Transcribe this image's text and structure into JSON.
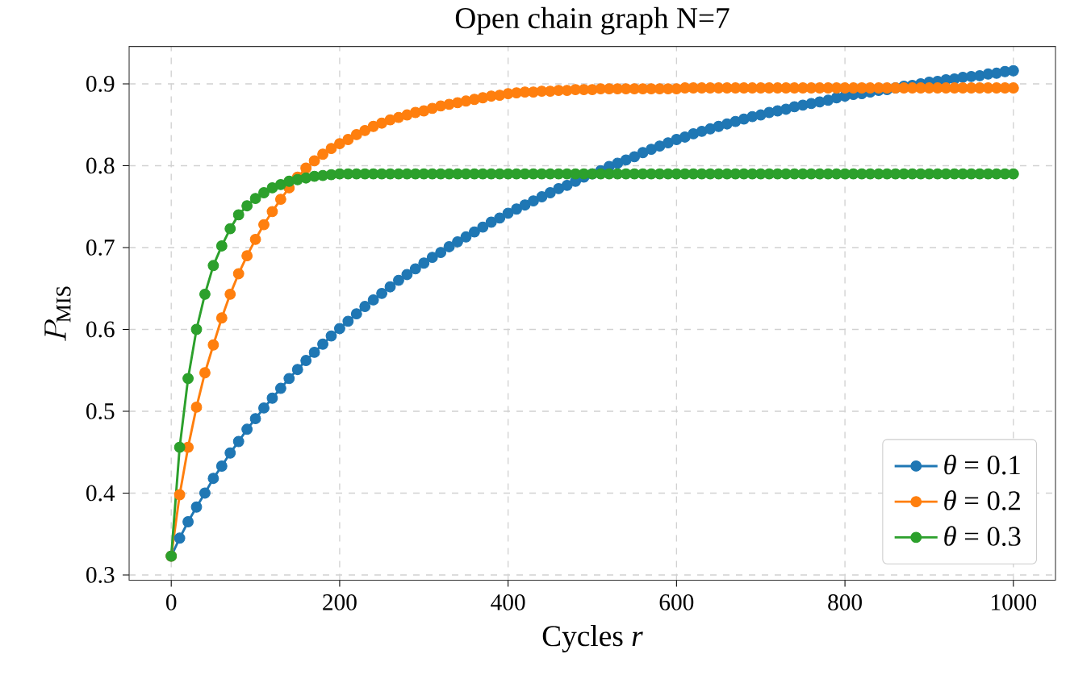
{
  "chart_data": {
    "type": "line",
    "title": "Open chain graph N=7",
    "xlabel": "Cycles *r*",
    "ylabel": "P_{\\mathrm{MIS}}",
    "x": [
      0,
      10,
      20,
      30,
      40,
      50,
      60,
      70,
      80,
      90,
      100,
      110,
      120,
      130,
      140,
      150,
      160,
      170,
      180,
      190,
      200,
      210,
      220,
      230,
      240,
      250,
      260,
      270,
      280,
      290,
      300,
      310,
      320,
      330,
      340,
      350,
      360,
      370,
      380,
      390,
      400,
      410,
      420,
      430,
      440,
      450,
      460,
      470,
      480,
      490,
      500,
      510,
      520,
      530,
      540,
      550,
      560,
      570,
      580,
      590,
      600,
      610,
      620,
      630,
      640,
      650,
      660,
      670,
      680,
      690,
      700,
      710,
      720,
      730,
      740,
      750,
      760,
      770,
      780,
      790,
      800,
      810,
      820,
      830,
      840,
      850,
      860,
      870,
      880,
      890,
      900,
      910,
      920,
      930,
      940,
      950,
      960,
      970,
      980,
      990,
      1000
    ],
    "series": [
      {
        "name": "*θ* = 0.1",
        "color": "#1f77b4",
        "values": [
          0.323,
          0.345,
          0.365,
          0.383,
          0.4,
          0.418,
          0.433,
          0.449,
          0.463,
          0.478,
          0.491,
          0.504,
          0.516,
          0.528,
          0.54,
          0.551,
          0.562,
          0.572,
          0.582,
          0.592,
          0.601,
          0.61,
          0.619,
          0.628,
          0.636,
          0.644,
          0.652,
          0.66,
          0.667,
          0.674,
          0.681,
          0.688,
          0.694,
          0.701,
          0.707,
          0.713,
          0.719,
          0.725,
          0.731,
          0.736,
          0.742,
          0.747,
          0.752,
          0.757,
          0.762,
          0.767,
          0.772,
          0.776,
          0.781,
          0.786,
          0.79,
          0.794,
          0.799,
          0.803,
          0.807,
          0.811,
          0.816,
          0.82,
          0.824,
          0.828,
          0.832,
          0.835,
          0.839,
          0.842,
          0.845,
          0.848,
          0.851,
          0.854,
          0.857,
          0.86,
          0.862,
          0.865,
          0.867,
          0.869,
          0.872,
          0.874,
          0.876,
          0.878,
          0.88,
          0.883,
          0.885,
          0.887,
          0.888,
          0.89,
          0.892,
          0.893,
          0.895,
          0.897,
          0.898,
          0.9,
          0.902,
          0.903,
          0.905,
          0.906,
          0.908,
          0.909,
          0.91,
          0.912,
          0.913,
          0.915,
          0.916
        ]
      },
      {
        "name": "*θ* = 0.2",
        "color": "#ff7f0e",
        "values": [
          0.323,
          0.398,
          0.456,
          0.505,
          0.547,
          0.581,
          0.614,
          0.643,
          0.668,
          0.69,
          0.71,
          0.728,
          0.744,
          0.759,
          0.773,
          0.786,
          0.797,
          0.806,
          0.814,
          0.821,
          0.827,
          0.832,
          0.838,
          0.843,
          0.848,
          0.852,
          0.856,
          0.859,
          0.862,
          0.865,
          0.867,
          0.87,
          0.873,
          0.875,
          0.877,
          0.879,
          0.881,
          0.883,
          0.885,
          0.886,
          0.888,
          0.889,
          0.89,
          0.89,
          0.891,
          0.891,
          0.892,
          0.892,
          0.893,
          0.893,
          0.893,
          0.894,
          0.894,
          0.894,
          0.894,
          0.894,
          0.894,
          0.894,
          0.894,
          0.894,
          0.894,
          0.895,
          0.895,
          0.895,
          0.895,
          0.895,
          0.895,
          0.895,
          0.895,
          0.895,
          0.895,
          0.895,
          0.895,
          0.895,
          0.895,
          0.895,
          0.895,
          0.895,
          0.895,
          0.895,
          0.895,
          0.895,
          0.895,
          0.895,
          0.895,
          0.895,
          0.895,
          0.895,
          0.895,
          0.895,
          0.895,
          0.895,
          0.895,
          0.895,
          0.895,
          0.895,
          0.895,
          0.895,
          0.895,
          0.895,
          0.895
        ]
      },
      {
        "name": "*θ* = 0.3",
        "color": "#2ca02c",
        "values": [
          0.323,
          0.456,
          0.54,
          0.6,
          0.643,
          0.678,
          0.702,
          0.723,
          0.74,
          0.751,
          0.76,
          0.767,
          0.773,
          0.777,
          0.781,
          0.783,
          0.785,
          0.787,
          0.788,
          0.789,
          0.79,
          0.79,
          0.79,
          0.79,
          0.79,
          0.79,
          0.79,
          0.79,
          0.79,
          0.79,
          0.79,
          0.79,
          0.79,
          0.79,
          0.79,
          0.79,
          0.79,
          0.79,
          0.79,
          0.79,
          0.79,
          0.79,
          0.79,
          0.79,
          0.79,
          0.79,
          0.79,
          0.79,
          0.79,
          0.79,
          0.79,
          0.79,
          0.79,
          0.79,
          0.79,
          0.79,
          0.79,
          0.79,
          0.79,
          0.79,
          0.79,
          0.79,
          0.79,
          0.79,
          0.79,
          0.79,
          0.79,
          0.79,
          0.79,
          0.79,
          0.79,
          0.79,
          0.79,
          0.79,
          0.79,
          0.79,
          0.79,
          0.79,
          0.79,
          0.79,
          0.79,
          0.79,
          0.79,
          0.79,
          0.79,
          0.79,
          0.79,
          0.79,
          0.79,
          0.79,
          0.79,
          0.79,
          0.79,
          0.79,
          0.79,
          0.79,
          0.79,
          0.79,
          0.79,
          0.79,
          0.79
        ]
      }
    ],
    "xlim": [
      -50,
      1050
    ],
    "ylim": [
      0.2935,
      0.9457
    ],
    "xticks": [
      0,
      200,
      400,
      600,
      800,
      1000
    ],
    "yticks": [
      0.3,
      0.4,
      0.5,
      0.6,
      0.7,
      0.8,
      0.9
    ],
    "grid": true,
    "legend": "bottom right",
    "marker": "circle",
    "line_style": "solid"
  }
}
